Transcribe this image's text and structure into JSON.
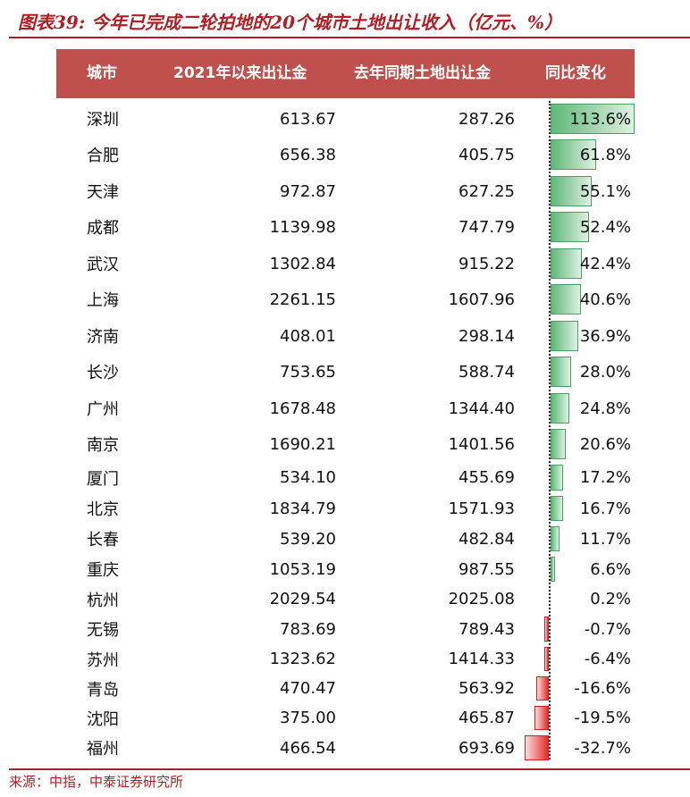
{
  "title": "图表39: 今年已完成二轮拍地的20个城市土地出让收入（亿元、%）",
  "table": {
    "columns": [
      "城市",
      "2021年以来出让金",
      "去年同期土地出让金",
      "同比变化"
    ],
    "rows": [
      {
        "city": "深圳",
        "y2021": "613.67",
        "prior": "287.26",
        "yoy": "113.6%",
        "yoy_value": 113.6
      },
      {
        "city": "合肥",
        "y2021": "656.38",
        "prior": "405.75",
        "yoy": "61.8%",
        "yoy_value": 61.8
      },
      {
        "city": "天津",
        "y2021": "972.87",
        "prior": "627.25",
        "yoy": "55.1%",
        "yoy_value": 55.1
      },
      {
        "city": "成都",
        "y2021": "1139.98",
        "prior": "747.79",
        "yoy": "52.4%",
        "yoy_value": 52.4
      },
      {
        "city": "武汉",
        "y2021": "1302.84",
        "prior": "915.22",
        "yoy": "42.4%",
        "yoy_value": 42.4
      },
      {
        "city": "上海",
        "y2021": "2261.15",
        "prior": "1607.96",
        "yoy": "40.6%",
        "yoy_value": 40.6
      },
      {
        "city": "济南",
        "y2021": "408.01",
        "prior": "298.14",
        "yoy": "36.9%",
        "yoy_value": 36.9
      },
      {
        "city": "长沙",
        "y2021": "753.65",
        "prior": "588.74",
        "yoy": "28.0%",
        "yoy_value": 28.0
      },
      {
        "city": "广州",
        "y2021": "1678.48",
        "prior": "1344.40",
        "yoy": "24.8%",
        "yoy_value": 24.8
      },
      {
        "city": "南京",
        "y2021": "1690.21",
        "prior": "1401.56",
        "yoy": "20.6%",
        "yoy_value": 20.6
      },
      {
        "city": "厦门",
        "y2021": "534.10",
        "prior": "455.69",
        "yoy": "17.2%",
        "yoy_value": 17.2
      },
      {
        "city": "北京",
        "y2021": "1834.79",
        "prior": "1571.93",
        "yoy": "16.7%",
        "yoy_value": 16.7
      },
      {
        "city": "长春",
        "y2021": "539.20",
        "prior": "482.84",
        "yoy": "11.7%",
        "yoy_value": 11.7
      },
      {
        "city": "重庆",
        "y2021": "1053.19",
        "prior": "987.55",
        "yoy": "6.6%",
        "yoy_value": 6.6
      },
      {
        "city": "杭州",
        "y2021": "2029.54",
        "prior": "2025.08",
        "yoy": "0.2%",
        "yoy_value": 0.2
      },
      {
        "city": "无锡",
        "y2021": "783.69",
        "prior": "789.43",
        "yoy": "-0.7%",
        "yoy_value": -0.7
      },
      {
        "city": "苏州",
        "y2021": "1323.62",
        "prior": "1414.33",
        "yoy": "-6.4%",
        "yoy_value": -6.4
      },
      {
        "city": "青岛",
        "y2021": "470.47",
        "prior": "563.92",
        "yoy": "-16.6%",
        "yoy_value": -16.6
      },
      {
        "city": "沈阳",
        "y2021": "375.00",
        "prior": "465.87",
        "yoy": "-19.5%",
        "yoy_value": -19.5
      },
      {
        "city": "福州",
        "y2021": "466.54",
        "prior": "693.69",
        "yoy": "-32.7%",
        "yoy_value": -32.7
      }
    ]
  },
  "colors": {
    "accent": "#b01e23",
    "header_bg": "#c0504d",
    "positive": "#5fb878",
    "negative": "#e82a2a"
  },
  "source": "来源：中指，中泰证券研究所"
}
